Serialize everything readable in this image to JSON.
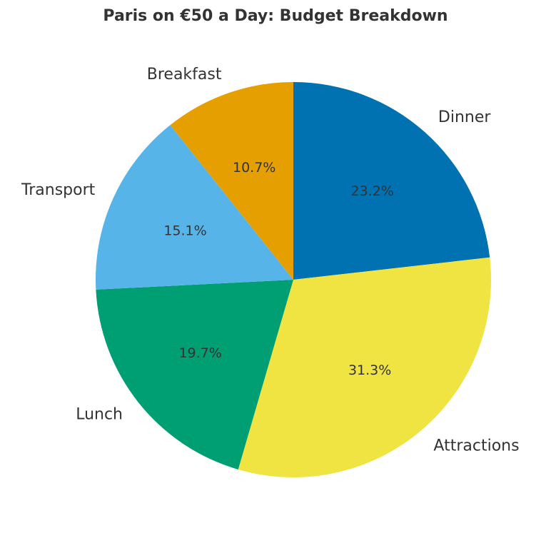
{
  "chart_data": {
    "type": "pie",
    "title": "Paris on €50 a Day: Budget Breakdown",
    "start_angle_deg": 90,
    "direction": "clockwise",
    "slices": [
      {
        "label": "Dinner",
        "value": 23.2,
        "pct_label": "23.2%",
        "color": "#0072B2"
      },
      {
        "label": "Attractions",
        "value": 31.3,
        "pct_label": "31.3%",
        "color": "#F0E442"
      },
      {
        "label": "Lunch",
        "value": 19.7,
        "pct_label": "19.7%",
        "color": "#009E73"
      },
      {
        "label": "Transport",
        "value": 15.1,
        "pct_label": "15.1%",
        "color": "#56B4E9"
      },
      {
        "label": "Breakfast",
        "value": 10.7,
        "pct_label": "10.7%",
        "color": "#E69F00"
      }
    ]
  }
}
